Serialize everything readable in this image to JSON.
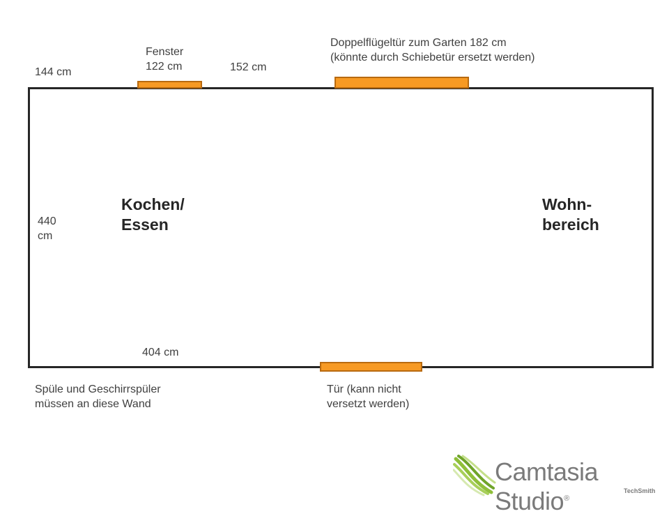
{
  "labels": {
    "top_left_len": "144 cm",
    "window": "Fenster\n122 cm",
    "top_mid_len": "152 cm",
    "double_door": "Doppelflügeltür zum Garten 182 cm\n(könnte durch Schiebetür ersetzt werden)",
    "left_wall": "440\ncm",
    "bottom_len": "404 cm",
    "sink_note": "Spüle und Geschirrspüler\nmüssen an diese Wand",
    "door_note": "Tür (kann nicht\nversetzt werden)"
  },
  "areas": {
    "kitchen": "Kochen/\nEssen",
    "living": "Wohn-\nbereich"
  },
  "logo": {
    "name": "Camtasia Studio",
    "mark": "®",
    "sub": "TechSmith"
  },
  "colors": {
    "opening_fill": "#f79a24",
    "opening_border": "#b86a10",
    "wall": "#262626"
  }
}
